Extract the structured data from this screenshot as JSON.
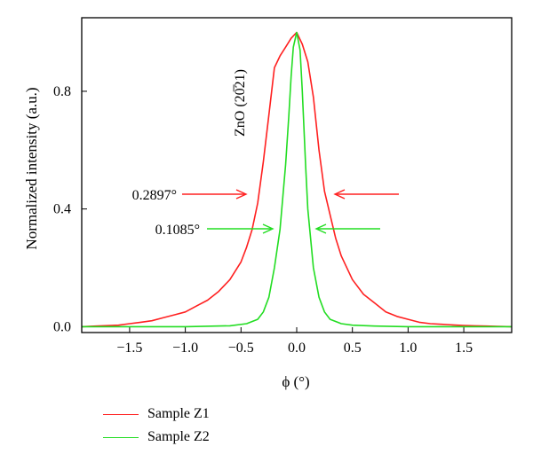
{
  "chart_data": {
    "type": "line",
    "xlabel": "ϕ (°)",
    "ylabel": "Normalized intensity (a.u.)",
    "xlim": [
      -1.93,
      1.93
    ],
    "ylim": [
      -0.02,
      1.05
    ],
    "xticks": [
      -1.5,
      -1.0,
      -0.5,
      0.0,
      0.5,
      1.0,
      1.5
    ],
    "xtick_labels": [
      "−1.5",
      "−1.0",
      "−0.5",
      "0.0",
      "0.5",
      "1.0",
      "1.5"
    ],
    "yticks": [
      0.0,
      0.4,
      0.8
    ],
    "ytick_labels": [
      "0.0",
      "0.4",
      "0.8"
    ],
    "grid": false,
    "legend_position": "bottom-left, below plot",
    "series": [
      {
        "name": "Sample Z1",
        "color": "#ff2020",
        "x": [
          -1.93,
          -1.8,
          -1.6,
          -1.5,
          -1.4,
          -1.3,
          -1.2,
          -1.1,
          -1.0,
          -0.9,
          -0.8,
          -0.7,
          -0.6,
          -0.5,
          -0.45,
          -0.4,
          -0.35,
          -0.3,
          -0.25,
          -0.2,
          -0.15,
          -0.1,
          -0.05,
          0.0,
          0.05,
          0.1,
          0.15,
          0.2,
          0.25,
          0.3,
          0.35,
          0.4,
          0.5,
          0.6,
          0.7,
          0.8,
          0.9,
          1.0,
          1.1,
          1.2,
          1.3,
          1.4,
          1.5,
          1.6,
          1.7,
          1.8,
          1.93
        ],
        "values": [
          0.0,
          0.002,
          0.005,
          0.01,
          0.015,
          0.02,
          0.03,
          0.04,
          0.05,
          0.07,
          0.09,
          0.12,
          0.16,
          0.22,
          0.27,
          0.33,
          0.42,
          0.56,
          0.72,
          0.88,
          0.92,
          0.95,
          0.98,
          1.0,
          0.96,
          0.9,
          0.78,
          0.6,
          0.46,
          0.38,
          0.3,
          0.24,
          0.16,
          0.11,
          0.08,
          0.05,
          0.035,
          0.025,
          0.015,
          0.01,
          0.008,
          0.006,
          0.004,
          0.003,
          0.002,
          0.001,
          0.0
        ]
      },
      {
        "name": "Sample Z2",
        "color": "#22dd22",
        "x": [
          -1.93,
          -1.5,
          -1.0,
          -0.6,
          -0.45,
          -0.35,
          -0.3,
          -0.25,
          -0.2,
          -0.15,
          -0.1,
          -0.07,
          -0.05,
          -0.03,
          0.0,
          0.03,
          0.05,
          0.08,
          0.1,
          0.15,
          0.2,
          0.25,
          0.3,
          0.4,
          0.5,
          0.7,
          1.0,
          1.5,
          1.93
        ],
        "values": [
          0.0,
          0.0,
          0.0,
          0.003,
          0.01,
          0.025,
          0.05,
          0.1,
          0.2,
          0.33,
          0.55,
          0.72,
          0.85,
          0.95,
          1.0,
          0.94,
          0.8,
          0.55,
          0.4,
          0.2,
          0.1,
          0.05,
          0.025,
          0.01,
          0.005,
          0.002,
          0.0,
          0.0,
          0.0
        ]
      }
    ],
    "annotations": [
      {
        "text": "ZnO (20̅21)",
        "rotation": "vertical"
      },
      {
        "text": "0.2897°",
        "color": "#ff2020",
        "fwhm": 0.2897
      },
      {
        "text": "0.1085°",
        "color": "#22dd22",
        "fwhm": 0.1085
      }
    ]
  }
}
